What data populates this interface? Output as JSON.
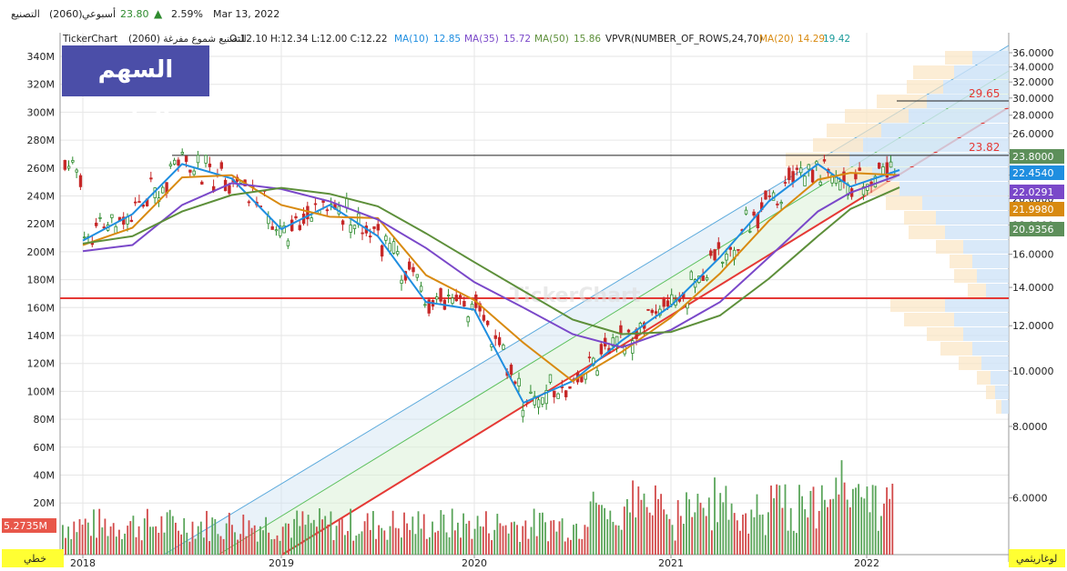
{
  "header": {
    "symbol_name": "التصنيع",
    "symbol_code": "(2060)",
    "period": "أسبوعي",
    "last_price": "23.80",
    "change_pct": "2.59%",
    "date": "Mar 13, 2022"
  },
  "legend": {
    "brand": "TickerChart",
    "description": "التصنيع شموع مفرغة (2060)",
    "ohlc": "O:12.10 H:12.34 L:12.00 C:12.22",
    "ma10_label": "MA(10)",
    "ma10_value": "12.85",
    "ma35_label": "MA(35)",
    "ma35_value": "15.72",
    "ma50_label": "MA(50)",
    "ma50_value": "15.86",
    "vpvr_label": "VPVR(NUMBER_OF_ROWS,24,70)",
    "ma20_label": "MA(20)",
    "ma20_value": "14.29",
    "extra_value": "19.42"
  },
  "title_box": "السهم الواعد",
  "watermark": "TickerChart",
  "right_tags": [
    {
      "text": "23.8000",
      "color": "#5d8f5a"
    },
    {
      "text": "22.4540",
      "color": "#1f8ee0"
    },
    {
      "text": "22.0291",
      "color": "#7a48c9"
    },
    {
      "text": "21.9980",
      "color": "#d88a10"
    },
    {
      "text": "20.9356",
      "color": "#5d8f5a"
    }
  ],
  "level_labels": {
    "top": "29.65",
    "mid": "23.82"
  },
  "volume_tag": "5.2735M",
  "bottom_left_label": "خطي",
  "bottom_right_label": "لوغاريثمي",
  "colors": {
    "ma10": "#1f8ee0",
    "ma35": "#7a48c9",
    "ma50": "#5d8f3a",
    "ma20": "#d88a10",
    "up": "#2e8b2e",
    "down": "#c62828",
    "support": "#e53935",
    "grid": "#e6e6e6"
  },
  "chart_data": {
    "type": "candlestick",
    "x_ticks": [
      "2018",
      "2019",
      "2020",
      "2021",
      "2022"
    ],
    "price_axis_ticks": [
      "36.0000",
      "34.0000",
      "32.0000",
      "30.0000",
      "28.0000",
      "26.0000",
      "24.0000",
      "22.0000",
      "20.0000",
      "18.0000",
      "16.0000",
      "14.0000",
      "12.0000",
      "10.0000",
      "8.0000",
      "6.0000"
    ],
    "left_axis_ticks": [
      "340M",
      "320M",
      "300M",
      "280M",
      "260M",
      "240M",
      "220M",
      "200M",
      "180M",
      "160M",
      "140M",
      "120M",
      "100M",
      "80M",
      "60M",
      "40M",
      "20M"
    ],
    "price_scale": "log",
    "ylim": [
      5.0,
      38.0
    ],
    "horizontal_levels": [
      {
        "value": 29.65,
        "label": "29.65",
        "color": "#222222"
      },
      {
        "value": 23.82,
        "label": "23.82",
        "color": "#222222"
      },
      {
        "value": 13.4,
        "label": "",
        "color": "#e53935"
      }
    ],
    "series": [
      {
        "name": "MA(10)",
        "color": "#1f8ee0",
        "points": [
          [
            "2018-01",
            16.9
          ],
          [
            "2018-04",
            18.8
          ],
          [
            "2018-07",
            23.0
          ],
          [
            "2018-10",
            21.7
          ],
          [
            "2019-01",
            17.7
          ],
          [
            "2019-04",
            19.5
          ],
          [
            "2019-07",
            17.2
          ],
          [
            "2019-10",
            13.2
          ],
          [
            "2020-01",
            12.8
          ],
          [
            "2020-04",
            8.8
          ],
          [
            "2020-07",
            9.6
          ],
          [
            "2020-10",
            11.3
          ],
          [
            "2021-01",
            13.0
          ],
          [
            "2021-04",
            15.8
          ],
          [
            "2021-07",
            19.8
          ],
          [
            "2021-10",
            23.0
          ],
          [
            "2021-12",
            21.0
          ],
          [
            "2022-03",
            22.45
          ]
        ]
      },
      {
        "name": "MA(20)",
        "color": "#d88a10",
        "points": [
          [
            "2018-01",
            16.6
          ],
          [
            "2018-04",
            17.8
          ],
          [
            "2018-07",
            21.8
          ],
          [
            "2018-10",
            22.0
          ],
          [
            "2019-01",
            19.5
          ],
          [
            "2019-04",
            18.6
          ],
          [
            "2019-07",
            18.5
          ],
          [
            "2019-10",
            14.7
          ],
          [
            "2020-01",
            13.3
          ],
          [
            "2020-04",
            11.2
          ],
          [
            "2020-07",
            9.6
          ],
          [
            "2020-10",
            10.8
          ],
          [
            "2021-01",
            12.4
          ],
          [
            "2021-04",
            14.8
          ],
          [
            "2021-07",
            18.3
          ],
          [
            "2021-10",
            21.6
          ],
          [
            "2021-12",
            22.2
          ],
          [
            "2022-03",
            22.0
          ]
        ]
      },
      {
        "name": "MA(35)",
        "color": "#7a48c9",
        "points": [
          [
            "2018-01",
            16.2
          ],
          [
            "2018-04",
            16.6
          ],
          [
            "2018-07",
            19.5
          ],
          [
            "2018-10",
            21.3
          ],
          [
            "2019-01",
            20.8
          ],
          [
            "2019-04",
            19.8
          ],
          [
            "2019-07",
            18.4
          ],
          [
            "2019-10",
            16.4
          ],
          [
            "2020-01",
            14.3
          ],
          [
            "2020-04",
            12.9
          ],
          [
            "2020-07",
            11.6
          ],
          [
            "2020-10",
            11.0
          ],
          [
            "2021-01",
            11.8
          ],
          [
            "2021-04",
            13.2
          ],
          [
            "2021-07",
            15.8
          ],
          [
            "2021-10",
            19.0
          ],
          [
            "2021-12",
            20.5
          ],
          [
            "2022-03",
            22.03
          ]
        ]
      },
      {
        "name": "MA(50)",
        "color": "#5d8f3a",
        "points": [
          [
            "2018-01",
            16.7
          ],
          [
            "2018-04",
            17.2
          ],
          [
            "2018-07",
            19.0
          ],
          [
            "2018-10",
            20.3
          ],
          [
            "2019-01",
            20.9
          ],
          [
            "2019-04",
            20.4
          ],
          [
            "2019-07",
            19.4
          ],
          [
            "2019-10",
            17.4
          ],
          [
            "2020-01",
            15.5
          ],
          [
            "2020-04",
            13.8
          ],
          [
            "2020-07",
            12.3
          ],
          [
            "2020-10",
            11.6
          ],
          [
            "2021-01",
            11.7
          ],
          [
            "2021-04",
            12.5
          ],
          [
            "2021-07",
            14.5
          ],
          [
            "2021-10",
            17.2
          ],
          [
            "2021-12",
            19.2
          ],
          [
            "2022-03",
            20.94
          ]
        ]
      }
    ],
    "volume_scale": "M"
  }
}
